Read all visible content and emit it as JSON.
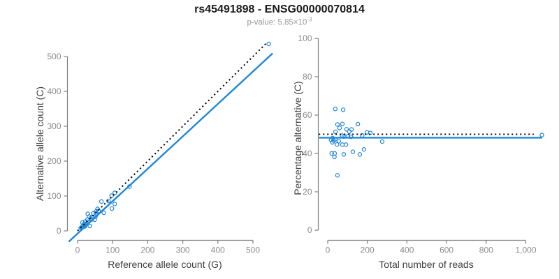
{
  "header": {
    "title": "rs45491898 - ENSG00000070814",
    "pvalue_prefix": "p-value: 5.85×10",
    "pvalue_exponent": "-3"
  },
  "colors": {
    "point": "#1E87DB",
    "fit_line": "#1E87DB",
    "reference_line": "#000000",
    "axis_line": "#7f7f7f",
    "tick_label": "#8c8c8c",
    "axis_title": "#404040",
    "title": "#1a1a1a",
    "subtitle": "#9a9a9a"
  },
  "chart_data": [
    {
      "type": "scatter",
      "name": "allele-counts-plot",
      "xlabel": "Reference allele count (G)",
      "ylabel": "Alternative allele count (C)",
      "xtick_values": [
        0,
        100,
        200,
        300,
        400,
        500
      ],
      "xtick_labels": [
        "0",
        "100",
        "200",
        "300",
        "400",
        "500"
      ],
      "ytick_values": [
        0,
        100,
        200,
        300,
        400,
        500
      ],
      "ytick_labels": [
        "0",
        "100",
        "200",
        "300",
        "400",
        "500"
      ],
      "xlim": [
        -28,
        568
      ],
      "ylim": [
        -28,
        568
      ],
      "grid": false,
      "points": [
        [
          9,
          8
        ],
        [
          13,
          11
        ],
        [
          16,
          14
        ],
        [
          12,
          8
        ],
        [
          20,
          18
        ],
        [
          14,
          24
        ],
        [
          29,
          49
        ],
        [
          22,
          27
        ],
        [
          33,
          41
        ],
        [
          68,
          84
        ],
        [
          28,
          32
        ],
        [
          45,
          50
        ],
        [
          57,
          63
        ],
        [
          19,
          20
        ],
        [
          53,
          56
        ],
        [
          97,
          101
        ],
        [
          106,
          109
        ],
        [
          13,
          12
        ],
        [
          52,
          50
        ],
        [
          26,
          21
        ],
        [
          41,
          33
        ],
        [
          51,
          41
        ],
        [
          148,
          127
        ],
        [
          21,
          14
        ],
        [
          21,
          13
        ],
        [
          49,
          32
        ],
        [
          75,
          52
        ],
        [
          98,
          64
        ],
        [
          106,
          77
        ],
        [
          35,
          14
        ],
        [
          545,
          536
        ],
        [
          88,
          86
        ],
        [
          37,
          36
        ],
        [
          30,
          26
        ],
        [
          60,
          57
        ],
        [
          42,
          40
        ]
      ],
      "lines": [
        {
          "name": "regression-fit-line",
          "style": "solid",
          "color": "#1E87DB",
          "width": 2.4,
          "from": [
            -25,
            -31
          ],
          "to": [
            556,
            509
          ]
        },
        {
          "name": "identity-reference-line",
          "style": "dotted",
          "color": "#000000",
          "width": 2,
          "from": [
            0,
            0
          ],
          "to": [
            538,
            538
          ]
        }
      ]
    },
    {
      "type": "scatter",
      "name": "percentage-alternative-plot",
      "xlabel": "Total number of reads",
      "ylabel": "Percentage alternative (C)",
      "xtick_values": [
        0,
        200,
        400,
        600,
        800,
        1000
      ],
      "xtick_labels": [
        "0",
        "200",
        "400",
        "600",
        "800",
        "1,000"
      ],
      "ytick_values": [
        0,
        20,
        40,
        60,
        80,
        100
      ],
      "ytick_labels": [
        "0",
        "20",
        "40",
        "60",
        "80",
        "100"
      ],
      "xlim": [
        -45,
        1130
      ],
      "ylim": [
        0,
        100
      ],
      "grid": false,
      "points": [
        [
          17,
          47.1
        ],
        [
          24,
          45.8
        ],
        [
          30,
          46.7
        ],
        [
          20,
          40.0
        ],
        [
          38,
          47.4
        ],
        [
          38,
          63.2
        ],
        [
          78,
          62.8
        ],
        [
          49,
          55.1
        ],
        [
          74,
          55.4
        ],
        [
          152,
          55.3
        ],
        [
          60,
          53.3
        ],
        [
          95,
          52.6
        ],
        [
          120,
          52.5
        ],
        [
          39,
          51.3
        ],
        [
          109,
          51.4
        ],
        [
          198,
          51.0
        ],
        [
          215,
          50.7
        ],
        [
          25,
          48.0
        ],
        [
          102,
          49.0
        ],
        [
          47,
          44.7
        ],
        [
          74,
          44.6
        ],
        [
          92,
          44.6
        ],
        [
          275,
          46.2
        ],
        [
          35,
          40.0
        ],
        [
          34,
          38.2
        ],
        [
          81,
          39.5
        ],
        [
          127,
          40.9
        ],
        [
          162,
          39.5
        ],
        [
          183,
          42.1
        ],
        [
          49,
          28.6
        ],
        [
          1081,
          49.6
        ],
        [
          174,
          49.4
        ],
        [
          73,
          49.3
        ],
        [
          56,
          46.4
        ],
        [
          117,
          48.7
        ],
        [
          82,
          48.8
        ]
      ],
      "lines": [
        {
          "name": "regression-fit-line",
          "style": "solid",
          "color": "#1E87DB",
          "width": 2.4,
          "from": [
            -45,
            48.2
          ],
          "to": [
            1083,
            48.2
          ]
        },
        {
          "name": "expected-50pct-reference-line",
          "style": "dotted",
          "color": "#000000",
          "width": 2,
          "from": [
            -45,
            50
          ],
          "to": [
            1040,
            50
          ]
        }
      ]
    }
  ]
}
